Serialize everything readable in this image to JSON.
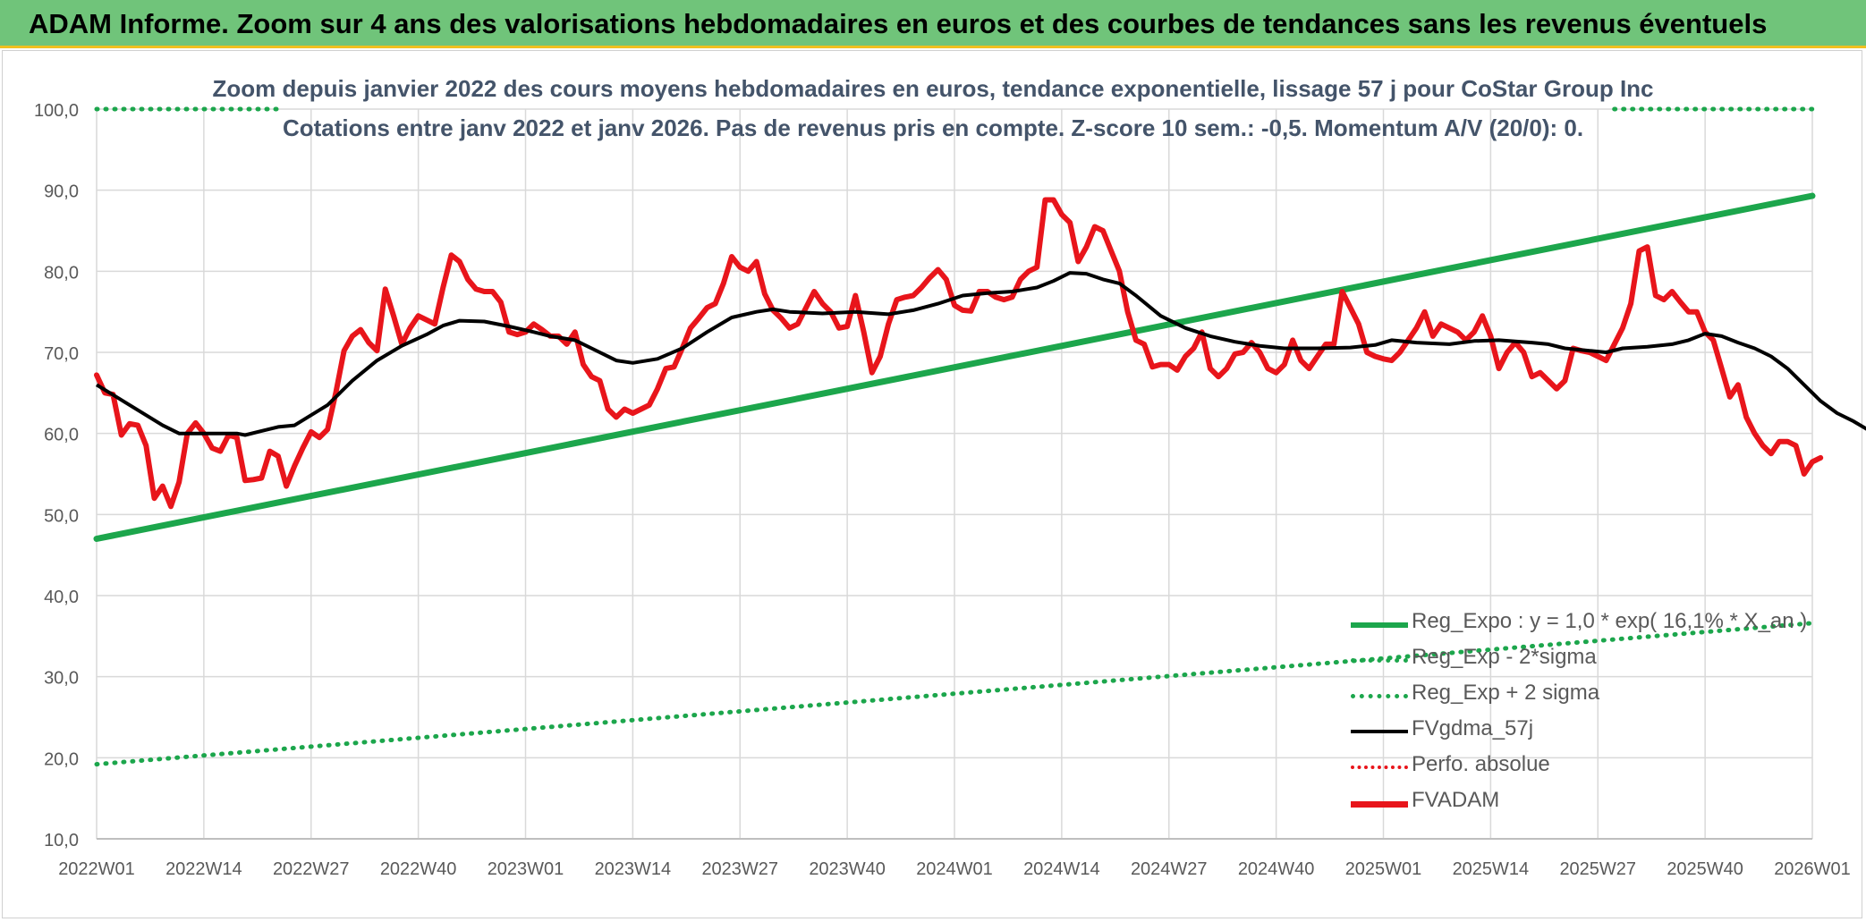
{
  "banner": {
    "title": "ADAM Informe. Zoom sur 4 ans des valorisations hebdomadaires en euros et des courbes de tendances sans les revenus éventuels"
  },
  "chart_data": {
    "type": "line",
    "title": "Zoom depuis janvier 2022 des cours moyens hebdomadaires en euros, tendance exponentielle, lissage 57 j pour CoStar Group Inc",
    "subtitle": "Cotations entre janv 2022 et janv 2026. Pas de revenus pris en compte. Z-score 10 sem.: -0,5. Momentum A/V (20/0): 0.",
    "xlabel": "",
    "ylabel": "",
    "ylim": [
      10,
      100
    ],
    "yticks": [
      "10,0",
      "20,0",
      "30,0",
      "40,0",
      "50,0",
      "60,0",
      "70,0",
      "80,0",
      "90,0",
      "100,0"
    ],
    "x_tick_labels": [
      "2022W01",
      "2022W14",
      "2022W27",
      "2022W40",
      "2023W01",
      "2023W14",
      "2023W27",
      "2023W40",
      "2024W01",
      "2024W14",
      "2024W27",
      "2024W40",
      "2025W01",
      "2025W14",
      "2025W27",
      "2025W40",
      "2026W01"
    ],
    "x_range_weeks": [
      0,
      208
    ],
    "grid": true,
    "legend_position": "bottom-right",
    "series": [
      {
        "name": "Reg_Expo : y = 1,0 * exp( 16,1% *  X_an )",
        "color": "#1ca64c",
        "style": "solid",
        "points": [
          [
            0,
            47.0
          ],
          [
            208,
            89.3
          ]
        ]
      },
      {
        "name": "Reg_Exp - 2*sigma",
        "color": "#1ca64c",
        "style": "dotted",
        "points": [
          [
            0,
            19.2
          ],
          [
            208,
            36.6
          ]
        ]
      },
      {
        "name": "Reg_Exp + 2 sigma",
        "color": "#1ca64c",
        "style": "dotted",
        "points": [
          [
            0,
            100.0
          ],
          [
            22,
            100.0
          ],
          [
            184,
            100.0
          ],
          [
            208,
            100.0
          ]
        ],
        "visible_segments": [
          [
            0,
            22
          ],
          [
            184,
            208
          ]
        ]
      },
      {
        "name": "FVgdma_57j",
        "color": "#000000",
        "style": "solid",
        "points": [
          [
            0,
            66
          ],
          [
            4,
            63.5
          ],
          [
            8,
            61
          ],
          [
            10,
            60
          ],
          [
            13,
            60
          ],
          [
            17,
            60
          ],
          [
            18,
            59.8
          ],
          [
            20,
            60.3
          ],
          [
            22,
            60.8
          ],
          [
            24,
            61
          ],
          [
            28,
            63.5
          ],
          [
            31,
            66.5
          ],
          [
            34,
            69
          ],
          [
            37,
            70.8
          ],
          [
            40,
            72.2
          ],
          [
            42,
            73.3
          ],
          [
            44,
            73.9
          ],
          [
            47,
            73.8
          ],
          [
            50,
            73.2
          ],
          [
            53,
            72.5
          ],
          [
            55,
            72
          ],
          [
            58,
            71.5
          ],
          [
            60,
            70.5
          ],
          [
            63,
            69
          ],
          [
            65,
            68.7
          ],
          [
            68,
            69.2
          ],
          [
            71,
            70.5
          ],
          [
            74,
            72.5
          ],
          [
            77,
            74.3
          ],
          [
            80,
            75
          ],
          [
            82,
            75.3
          ],
          [
            84,
            75
          ],
          [
            88,
            74.8
          ],
          [
            92,
            75
          ],
          [
            96,
            74.7
          ],
          [
            99,
            75.2
          ],
          [
            102,
            76
          ],
          [
            105,
            77
          ],
          [
            108,
            77.3
          ],
          [
            111,
            77.5
          ],
          [
            114,
            78
          ],
          [
            116,
            78.8
          ],
          [
            118,
            79.8
          ],
          [
            120,
            79.7
          ],
          [
            122,
            79
          ],
          [
            124,
            78.5
          ],
          [
            126,
            77
          ],
          [
            129,
            74.5
          ],
          [
            132,
            73
          ],
          [
            135,
            72
          ],
          [
            138,
            71.3
          ],
          [
            141,
            70.8
          ],
          [
            144,
            70.5
          ],
          [
            148,
            70.5
          ],
          [
            152,
            70.6
          ],
          [
            155,
            70.9
          ],
          [
            157,
            71.5
          ],
          [
            160,
            71.2
          ],
          [
            164,
            71
          ],
          [
            167,
            71.4
          ],
          [
            170,
            71.5
          ],
          [
            174,
            71.2
          ],
          [
            176,
            71
          ],
          [
            178,
            70.5
          ],
          [
            181,
            70.2
          ],
          [
            183,
            70
          ],
          [
            185,
            70.5
          ],
          [
            188,
            70.7
          ],
          [
            191,
            71
          ],
          [
            193,
            71.5
          ],
          [
            195,
            72.3
          ],
          [
            197,
            72
          ],
          [
            199,
            71.2
          ],
          [
            201,
            70.5
          ],
          [
            203,
            69.5
          ],
          [
            205,
            68
          ],
          [
            207,
            66
          ],
          [
            209,
            64
          ],
          [
            211,
            62.5
          ],
          [
            213,
            61.5
          ],
          [
            215,
            60.3
          ],
          [
            218,
            59.5
          ]
        ]
      },
      {
        "name": "Perfo. absolue",
        "color": "#e8151b",
        "style": "dotted",
        "points": []
      },
      {
        "name": "FVADAM",
        "color": "#e8151b",
        "style": "solid",
        "points": [
          [
            0,
            67.2
          ],
          [
            1,
            65
          ],
          [
            2,
            64.8
          ],
          [
            3,
            59.8
          ],
          [
            4,
            61.2
          ],
          [
            5,
            61
          ],
          [
            6,
            58.5
          ],
          [
            7,
            52
          ],
          [
            8,
            53.5
          ],
          [
            9,
            51
          ],
          [
            10,
            54
          ],
          [
            11,
            60
          ],
          [
            12,
            61.3
          ],
          [
            13,
            60
          ],
          [
            14,
            58.2
          ],
          [
            15,
            57.8
          ],
          [
            16,
            59.8
          ],
          [
            17,
            59.5
          ],
          [
            18,
            54.2
          ],
          [
            19,
            54.3
          ],
          [
            20,
            54.5
          ],
          [
            21,
            57.8
          ],
          [
            22,
            57.2
          ],
          [
            23,
            53.5
          ],
          [
            24,
            56
          ],
          [
            25,
            58.2
          ],
          [
            26,
            60.2
          ],
          [
            27,
            59.5
          ],
          [
            28,
            60.5
          ],
          [
            29,
            65
          ],
          [
            30,
            70.2
          ],
          [
            31,
            72
          ],
          [
            32,
            72.8
          ],
          [
            33,
            71.2
          ],
          [
            34,
            70.2
          ],
          [
            35,
            77.8
          ],
          [
            36,
            74.5
          ],
          [
            37,
            71
          ],
          [
            38,
            73
          ],
          [
            39,
            74.5
          ],
          [
            40,
            74
          ],
          [
            41,
            73.5
          ],
          [
            42,
            78
          ],
          [
            43,
            82
          ],
          [
            44,
            81.2
          ],
          [
            45,
            79
          ],
          [
            46,
            77.8
          ],
          [
            47,
            77.5
          ],
          [
            48,
            77.5
          ],
          [
            49,
            76.2
          ],
          [
            50,
            72.5
          ],
          [
            51,
            72.2
          ],
          [
            52,
            72.5
          ],
          [
            53,
            73.5
          ],
          [
            54,
            72.8
          ],
          [
            55,
            72
          ],
          [
            56,
            72
          ],
          [
            57,
            71
          ],
          [
            58,
            72.5
          ],
          [
            59,
            68.5
          ],
          [
            60,
            67
          ],
          [
            61,
            66.5
          ],
          [
            62,
            63
          ],
          [
            63,
            62
          ],
          [
            64,
            63
          ],
          [
            65,
            62.5
          ],
          [
            66,
            63
          ],
          [
            67,
            63.5
          ],
          [
            68,
            65.5
          ],
          [
            69,
            68
          ],
          [
            70,
            68.2
          ],
          [
            71,
            70.5
          ],
          [
            72,
            73
          ],
          [
            73,
            74.2
          ],
          [
            74,
            75.5
          ],
          [
            75,
            76
          ],
          [
            76,
            78.5
          ],
          [
            77,
            81.8
          ],
          [
            78,
            80.5
          ],
          [
            79,
            80
          ],
          [
            80,
            81.2
          ],
          [
            81,
            77.2
          ],
          [
            82,
            75.2
          ],
          [
            83,
            74.2
          ],
          [
            84,
            73
          ],
          [
            85,
            73.5
          ],
          [
            86,
            75.5
          ],
          [
            87,
            77.5
          ],
          [
            88,
            76
          ],
          [
            89,
            75
          ],
          [
            90,
            73
          ],
          [
            91,
            73.2
          ],
          [
            92,
            77
          ],
          [
            93,
            72.5
          ],
          [
            94,
            67.5
          ],
          [
            95,
            69.5
          ],
          [
            96,
            73.5
          ],
          [
            97,
            76.5
          ],
          [
            98,
            76.8
          ],
          [
            99,
            77
          ],
          [
            100,
            78
          ],
          [
            101,
            79.2
          ],
          [
            102,
            80.2
          ],
          [
            103,
            79
          ],
          [
            104,
            75.8
          ],
          [
            105,
            75.2
          ],
          [
            106,
            75.1
          ],
          [
            107,
            77.5
          ],
          [
            108,
            77.5
          ],
          [
            109,
            76.8
          ],
          [
            110,
            76.5
          ],
          [
            111,
            76.8
          ],
          [
            112,
            79
          ],
          [
            113,
            80
          ],
          [
            114,
            80.5
          ],
          [
            115,
            88.8
          ],
          [
            116,
            88.8
          ],
          [
            117,
            87
          ],
          [
            118,
            86
          ],
          [
            119,
            81.2
          ],
          [
            120,
            83
          ],
          [
            121,
            85.5
          ],
          [
            122,
            85
          ],
          [
            123,
            82.5
          ],
          [
            124,
            80
          ],
          [
            125,
            75
          ],
          [
            126,
            71.5
          ],
          [
            127,
            71
          ],
          [
            128,
            68.2
          ],
          [
            129,
            68.5
          ],
          [
            130,
            68.5
          ],
          [
            131,
            67.8
          ],
          [
            132,
            69.5
          ],
          [
            133,
            70.5
          ],
          [
            134,
            72.5
          ],
          [
            135,
            68
          ],
          [
            136,
            67
          ],
          [
            137,
            68
          ],
          [
            138,
            69.8
          ],
          [
            139,
            70
          ],
          [
            140,
            71.2
          ],
          [
            141,
            70
          ],
          [
            142,
            68
          ],
          [
            143,
            67.5
          ],
          [
            144,
            68.5
          ],
          [
            145,
            71.5
          ],
          [
            146,
            69
          ],
          [
            147,
            68
          ],
          [
            148,
            69.5
          ],
          [
            149,
            71
          ],
          [
            150,
            71
          ],
          [
            151,
            77.5
          ],
          [
            152,
            75.5
          ],
          [
            153,
            73.5
          ],
          [
            154,
            70
          ],
          [
            155,
            69.5
          ],
          [
            156,
            69.2
          ],
          [
            157,
            69
          ],
          [
            158,
            70
          ],
          [
            159,
            71.5
          ],
          [
            160,
            73
          ],
          [
            161,
            75
          ],
          [
            162,
            72
          ],
          [
            163,
            73.5
          ],
          [
            164,
            73
          ],
          [
            165,
            72.5
          ],
          [
            166,
            71.5
          ],
          [
            167,
            72.5
          ],
          [
            168,
            74.5
          ],
          [
            169,
            72
          ],
          [
            170,
            68
          ],
          [
            171,
            70
          ],
          [
            172,
            71.2
          ],
          [
            173,
            70
          ],
          [
            174,
            67
          ],
          [
            175,
            67.5
          ],
          [
            176,
            66.5
          ],
          [
            177,
            65.5
          ],
          [
            178,
            66.5
          ],
          [
            179,
            70.5
          ],
          [
            180,
            70.2
          ],
          [
            181,
            70
          ],
          [
            182,
            69.5
          ],
          [
            183,
            69
          ],
          [
            184,
            71
          ],
          [
            185,
            73
          ],
          [
            186,
            76
          ],
          [
            187,
            82.5
          ],
          [
            188,
            83
          ],
          [
            189,
            77
          ],
          [
            190,
            76.5
          ],
          [
            191,
            77.5
          ],
          [
            192,
            76.2
          ],
          [
            193,
            75
          ],
          [
            194,
            75
          ],
          [
            195,
            72.5
          ],
          [
            196,
            71.5
          ],
          [
            197,
            68
          ],
          [
            198,
            64.5
          ],
          [
            199,
            66
          ],
          [
            200,
            62
          ],
          [
            201,
            60
          ],
          [
            202,
            58.5
          ],
          [
            203,
            57.5
          ],
          [
            204,
            59
          ],
          [
            205,
            59
          ],
          [
            206,
            58.5
          ],
          [
            207,
            55
          ],
          [
            208,
            56.5
          ],
          [
            209,
            57
          ]
        ]
      }
    ]
  }
}
